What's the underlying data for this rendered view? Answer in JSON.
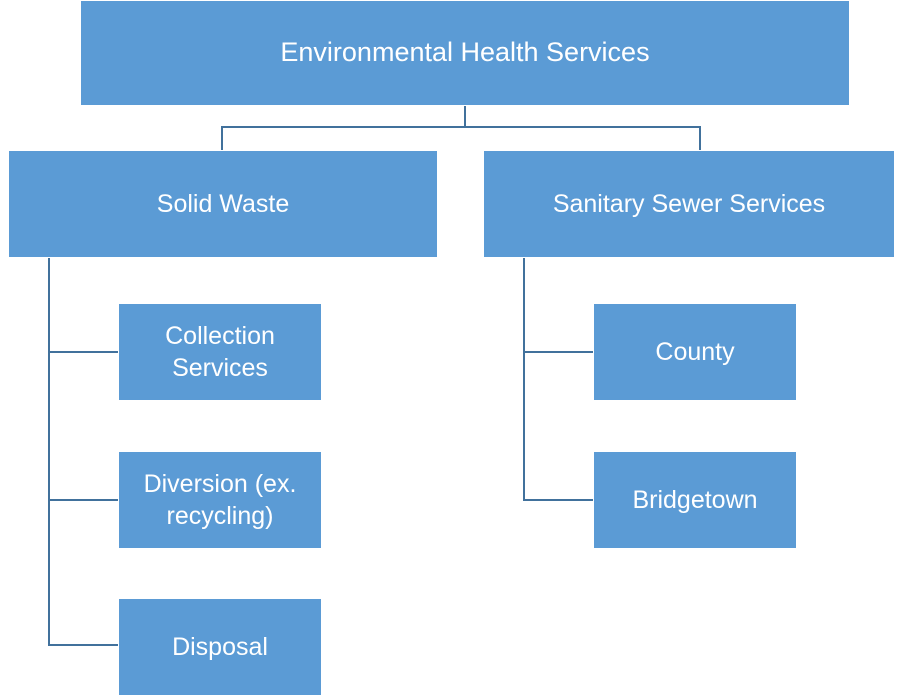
{
  "nodes": [
    {
      "label": "Environmental Health Services"
    },
    {
      "label": "Solid Waste"
    },
    {
      "label": "Sanitary Sewer Services"
    },
    {
      "label": "Collection Services"
    },
    {
      "label": "Diversion (ex. recycling)"
    },
    {
      "label": "Disposal"
    },
    {
      "label": "County"
    },
    {
      "label": "Bridgetown"
    }
  ]
}
